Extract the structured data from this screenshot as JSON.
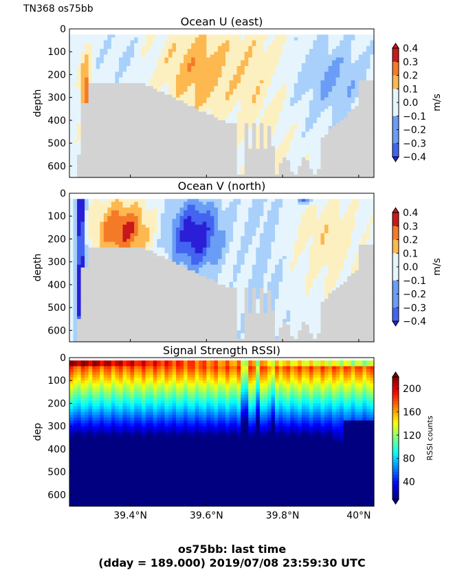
{
  "header": {
    "cruise": "TN368 os75bb"
  },
  "footer": {
    "line1": "os75bb: last time",
    "line2": "(dday = 189.000) 2019/07/08 23:59:30 UTC"
  },
  "chart_data": [
    {
      "type": "heatmap",
      "title": "Ocean U (east)",
      "ylabel": "depth",
      "xlim": [
        39.24,
        40.04
      ],
      "ylim": [
        650,
        0
      ],
      "yticks": [
        "0",
        "100",
        "200",
        "300",
        "400",
        "500",
        "600"
      ],
      "xticks": [],
      "colorbar": {
        "label": "m/s",
        "ticks": [
          "0.4",
          "0.3",
          "0.2",
          "0.1",
          "0.0",
          "−0.1",
          "−0.2",
          "−0.3",
          "−0.4"
        ],
        "range": [
          -0.4,
          0.4
        ]
      },
      "bottom_mask_color": "#d3d3d3"
    },
    {
      "type": "heatmap",
      "title": "Ocean V (north)",
      "ylabel": "depth",
      "xlim": [
        39.24,
        40.04
      ],
      "ylim": [
        650,
        0
      ],
      "yticks": [
        "0",
        "100",
        "200",
        "300",
        "400",
        "500",
        "600"
      ],
      "xticks": [],
      "colorbar": {
        "label": "m/s",
        "ticks": [
          "0.4",
          "0.3",
          "0.2",
          "0.1",
          "0.0",
          "−0.1",
          "−0.2",
          "−0.3",
          "−0.4"
        ],
        "range": [
          -0.4,
          0.4
        ]
      },
      "bottom_mask_color": "#d3d3d3"
    },
    {
      "type": "heatmap",
      "title": "Signal Strength RSSI)",
      "ylabel": "dep",
      "xlim": [
        39.24,
        40.04
      ],
      "ylim": [
        650,
        0
      ],
      "yticks": [
        "0",
        "100",
        "200",
        "300",
        "400",
        "500",
        "600"
      ],
      "xticks": [
        "39.4°N",
        "39.6°N",
        "39.8°N",
        "40°N"
      ],
      "xtick_values": [
        39.4,
        39.6,
        39.8,
        40.0
      ],
      "colorbar": {
        "label": "RSSI counts",
        "ticks": [
          "200",
          "160",
          "120",
          "80",
          "40"
        ],
        "range": [
          10,
          220
        ]
      }
    }
  ]
}
